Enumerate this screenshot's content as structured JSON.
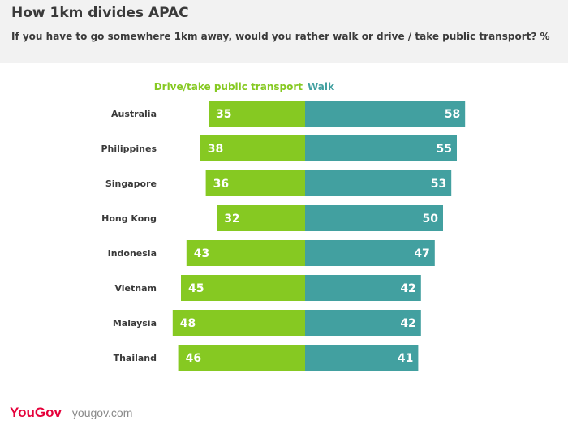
{
  "title": "How 1km divides APAC",
  "subtitle": "If you have to go somewhere 1km away, would you rather walk or drive / take public transport?  %",
  "footer": {
    "brand": "YouGov",
    "site": "yougov.com"
  },
  "colors": {
    "drive": "#86c922",
    "walk": "#42a0a0",
    "header_bg": "#f2f2f2"
  },
  "chart_data": {
    "type": "bar",
    "orientation": "diverging-horizontal",
    "categories": [
      "Australia",
      "Philippines",
      "Singapore",
      "Hong Kong",
      "Indonesia",
      "Vietnam",
      "Malaysia",
      "Thailand"
    ],
    "series": [
      {
        "name": "Drive/take public transport",
        "values": [
          35,
          38,
          36,
          32,
          43,
          45,
          48,
          46
        ]
      },
      {
        "name": "Walk",
        "values": [
          58,
          55,
          53,
          50,
          47,
          42,
          42,
          41
        ]
      }
    ],
    "unit": "%",
    "legend": "top-center",
    "grid": false
  }
}
